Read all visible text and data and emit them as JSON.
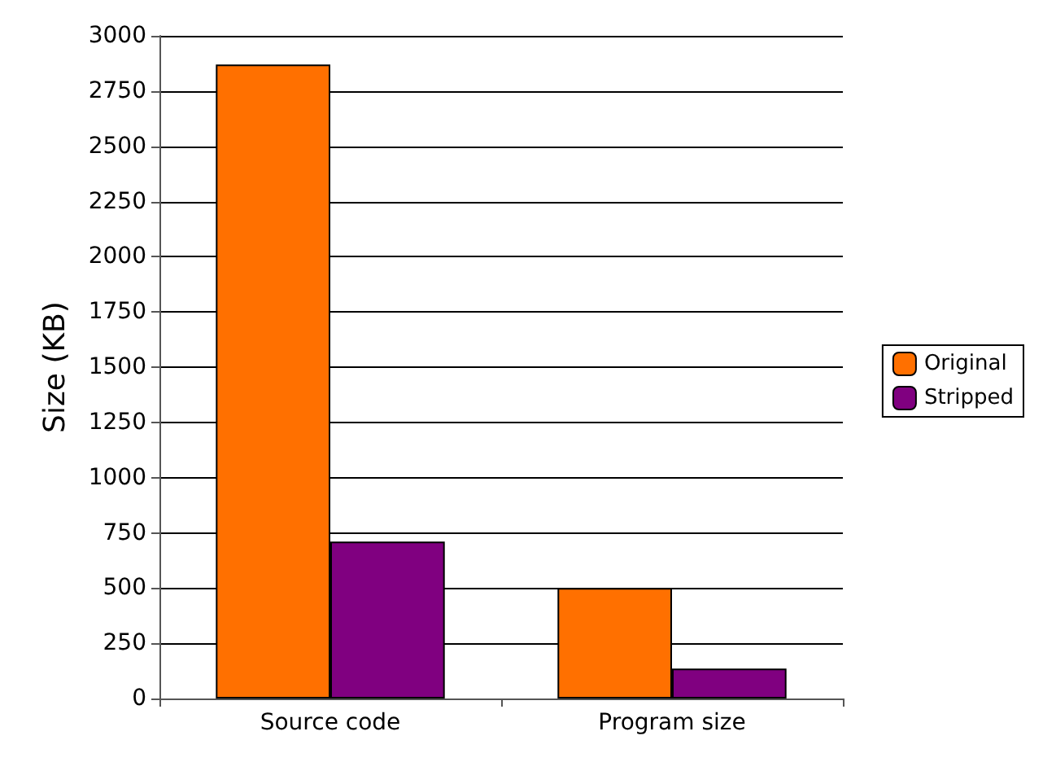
{
  "chart_data": {
    "type": "bar",
    "ylabel": "Size (KB)",
    "categories": [
      "Source code",
      "Program size"
    ],
    "series": [
      {
        "name": "Original",
        "color": "#ff7000",
        "values": [
          2870,
          500
        ]
      },
      {
        "name": "Stripped",
        "color": "#800080",
        "values": [
          710,
          135
        ]
      }
    ],
    "ylim": [
      0,
      3000
    ],
    "yticks": [
      0,
      250,
      500,
      750,
      1000,
      1250,
      1500,
      1750,
      2000,
      2250,
      2500,
      2750,
      3000
    ],
    "grid": "y",
    "legend": "right"
  }
}
